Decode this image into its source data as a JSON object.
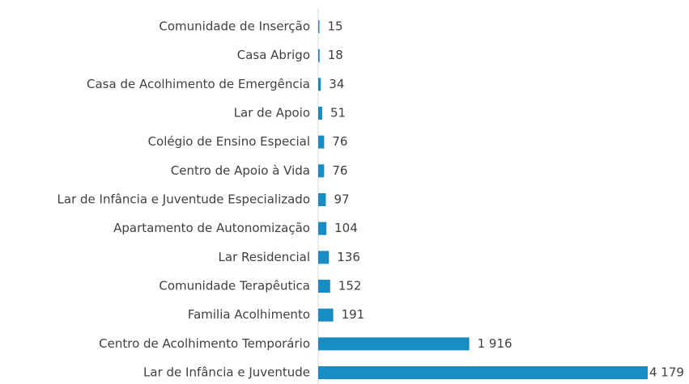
{
  "chart_data": {
    "type": "bar",
    "orientation": "horizontal",
    "categories": [
      "Comunidade de Inserção",
      "Casa Abrigo",
      "Casa de Acolhimento de Emergência",
      "Lar de Apoio",
      "Colégio de Ensino Especial",
      "Centro de Apoio à Vida",
      "Lar de Infância e Juventude Especializado",
      "Apartamento de Autonomização",
      "Lar Residencial",
      "Comunidade Terapêutica",
      "Familia Acolhimento",
      "Centro de Acolhimento Temporário",
      "Lar de Infância e Juventude"
    ],
    "values": [
      15,
      18,
      34,
      51,
      76,
      76,
      97,
      104,
      136,
      152,
      191,
      1916,
      4179
    ],
    "value_labels": [
      "15",
      "18",
      "34",
      "51",
      "76",
      "76",
      "97",
      "104",
      "136",
      "152",
      "191",
      "1 916",
      "4 179"
    ],
    "color": "#1a8cc4"
  }
}
